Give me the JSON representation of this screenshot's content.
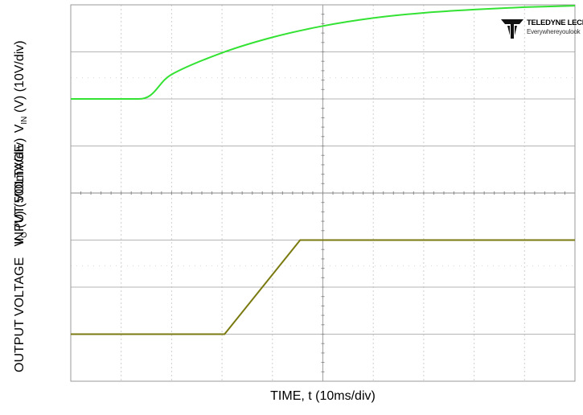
{
  "chart_data": {
    "type": "line",
    "x_divisions": 10,
    "x_scale_per_div": "10ms/div",
    "xlabel": "TIME, t (10ms/div)",
    "channels": [
      {
        "name": "INPUT VOLTAGE",
        "ylabel_main": "INPUT VOLTAGE",
        "ylabel_prefix": "V",
        "ylabel_sub": "IN",
        "ylabel_suffix": "(V) (10V/div)",
        "color": "#33e233",
        "y_divisions": 4,
        "t_div": [
          0,
          1.35,
          2,
          3,
          4,
          5,
          6,
          7,
          8,
          9,
          10
        ],
        "v_div": [
          0,
          0,
          0.52,
          0.98,
          1.31,
          1.55,
          1.72,
          1.83,
          1.9,
          1.95,
          1.98
        ]
      },
      {
        "name": "OUTPUT VOLTAGE",
        "ylabel_main": "OUTPUT VOLTAGE",
        "ylabel_prefix": "V",
        "ylabel_sub": "O",
        "ylabel_suffix": "(V) (500mV/div)",
        "color": "#7a7a10",
        "y_divisions": 4,
        "t_div": [
          0,
          3.05,
          4.55,
          10
        ],
        "v_div": [
          0,
          0,
          2,
          2
        ]
      }
    ],
    "grid": true
  },
  "brand": {
    "name": "TELEDYNE LECROY",
    "tagline": "Everywhereyoulook"
  }
}
